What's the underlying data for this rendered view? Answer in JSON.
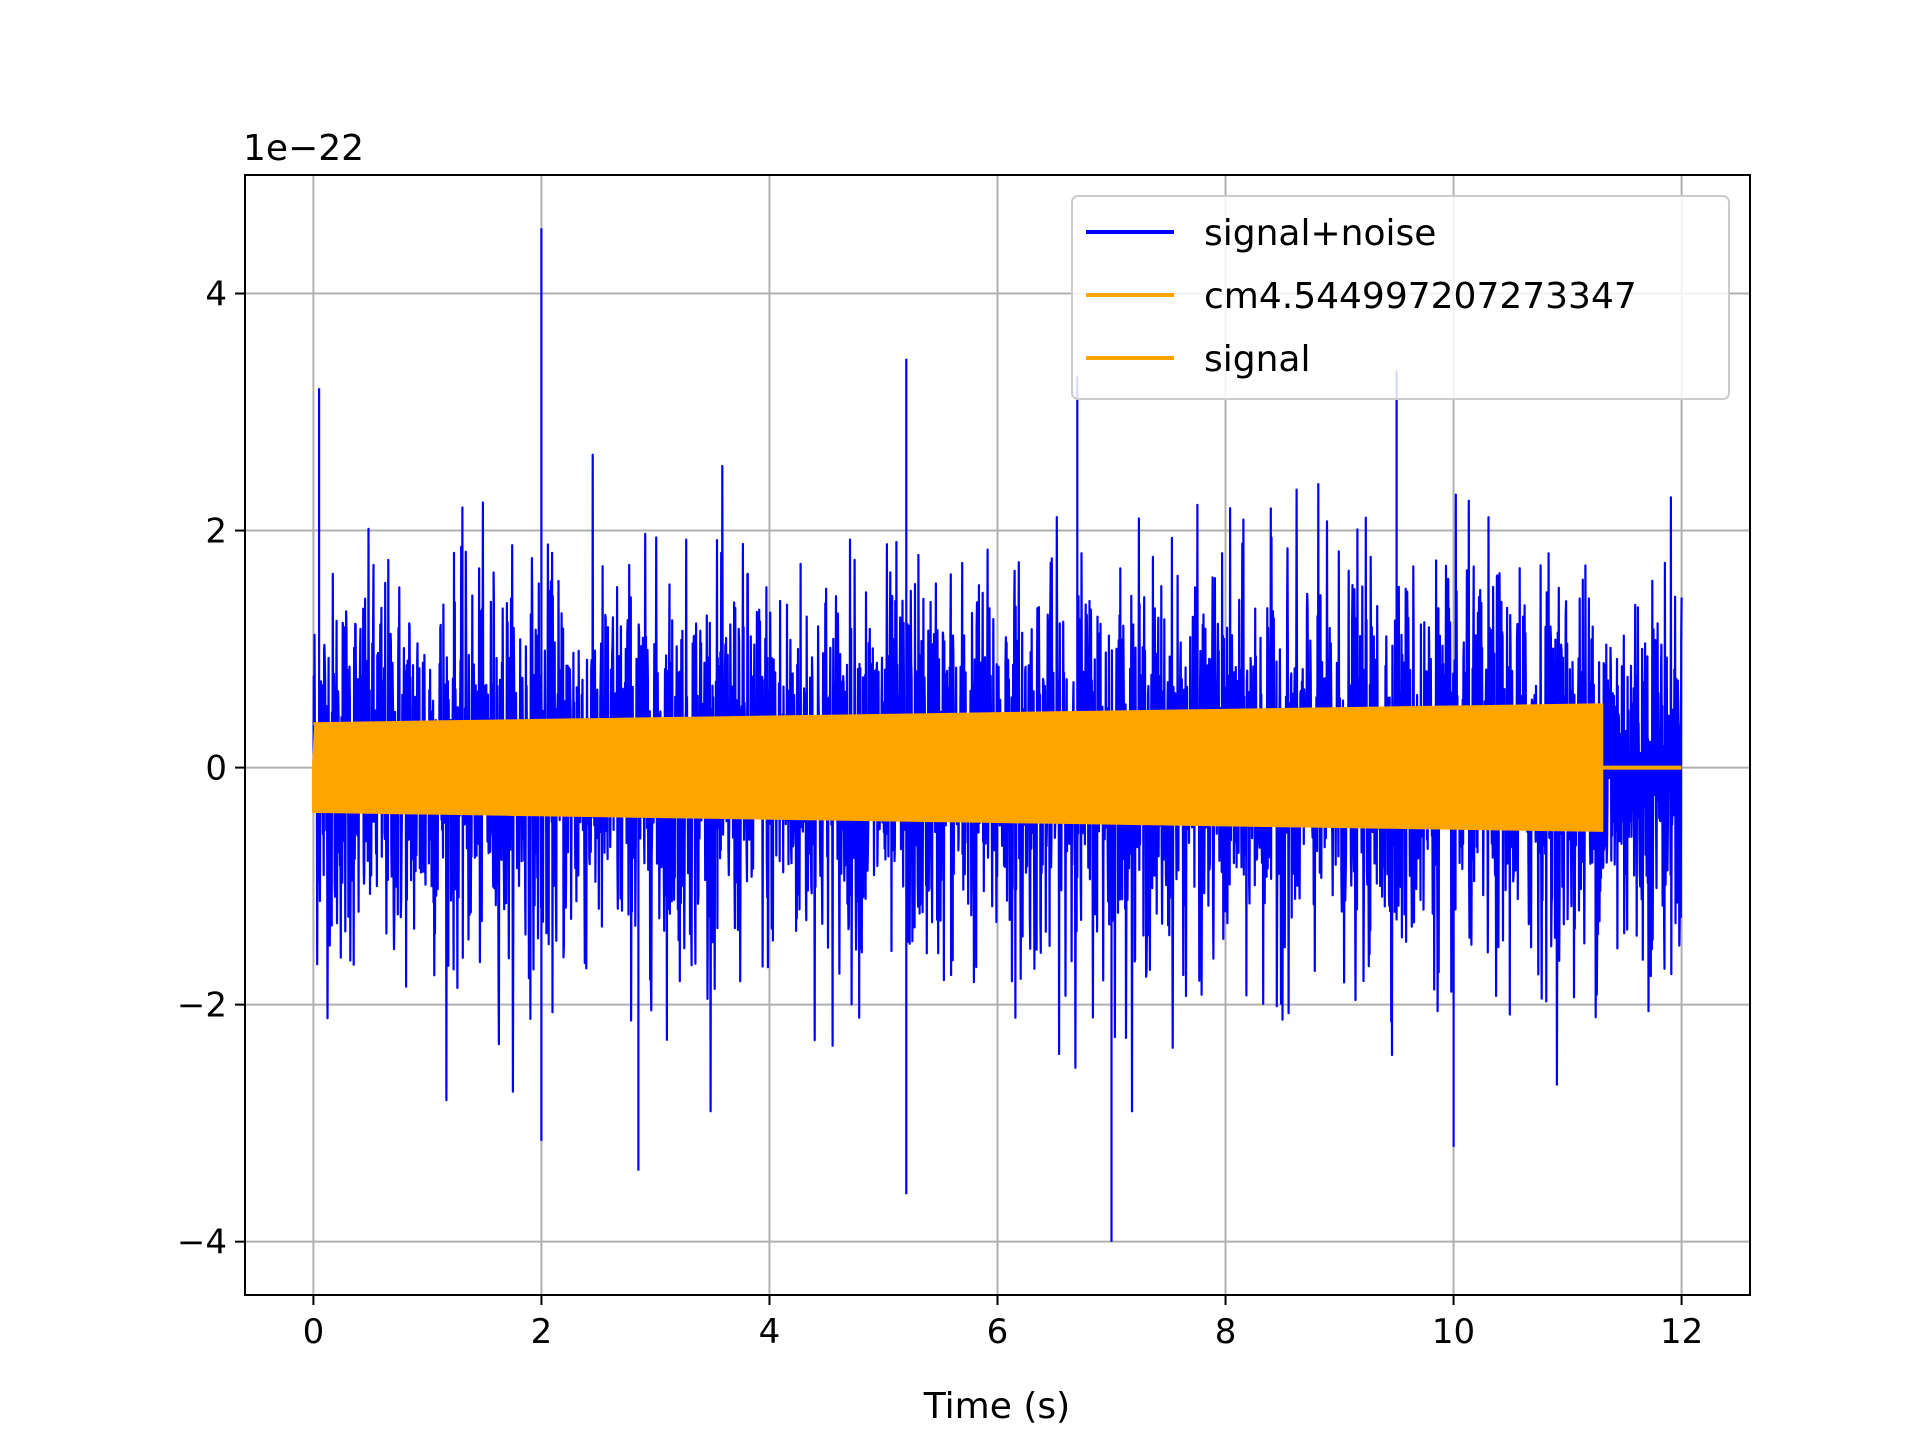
{
  "chart_data": {
    "type": "line",
    "title": "",
    "xlabel": "Time (s)",
    "ylabel": "",
    "y_offset_label": "1e−22",
    "xlim": [
      -0.6,
      12.6
    ],
    "ylim": [
      -4.45,
      5.0
    ],
    "x_ticks": [
      0,
      2,
      4,
      6,
      8,
      10,
      12
    ],
    "x_tick_labels": [
      "0",
      "2",
      "4",
      "6",
      "8",
      "10",
      "12"
    ],
    "y_ticks": [
      -4,
      -2,
      0,
      2,
      4
    ],
    "y_tick_labels": [
      "−4",
      "−2",
      "0",
      "2",
      "4"
    ],
    "grid": true,
    "legend_position": "top-right",
    "series": [
      {
        "name": "signal+noise",
        "color": "#0000ff",
        "x_range": [
          0,
          12
        ],
        "typical_amplitude": 1.3,
        "notable_peaks": [
          {
            "x": 0.05,
            "y": 3.2
          },
          {
            "x": 2.0,
            "y": 4.55
          },
          {
            "x": 5.2,
            "y": 3.45
          },
          {
            "x": 6.7,
            "y": 3.3
          },
          {
            "x": 9.5,
            "y": 3.35
          },
          {
            "x": 7.0,
            "y": -4.0
          },
          {
            "x": 5.2,
            "y": -3.6
          },
          {
            "x": 2.85,
            "y": -3.4
          },
          {
            "x": 2.0,
            "y": -3.15
          },
          {
            "x": 10.0,
            "y": -3.2
          }
        ]
      },
      {
        "name": "cm4.544997207273347",
        "color": "#ffa500",
        "x_range": [
          0,
          11.3
        ],
        "amplitude_start": 0.37,
        "amplitude_end": 0.53
      },
      {
        "name": "signal",
        "color": "#ffa500",
        "x_range": [
          11.3,
          12
        ],
        "value": 0
      }
    ]
  }
}
